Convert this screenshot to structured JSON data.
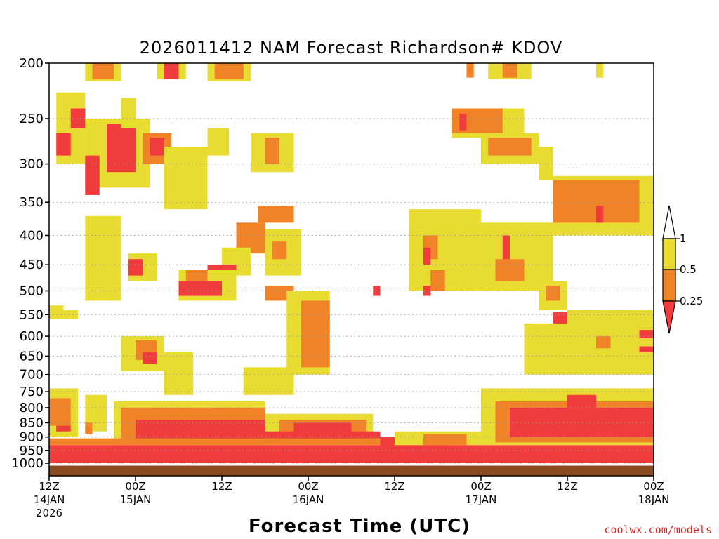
{
  "chart_data": {
    "type": "heatmap",
    "title": "2026011412 NAM Forecast Richardson# KDOV",
    "xlabel": "Forecast Time (UTC)",
    "ylabel": "",
    "y_scale": "log-pressure (hPa, inverted)",
    "ylim": [
      1000,
      200
    ],
    "y_ticks": [
      200,
      250,
      300,
      350,
      400,
      450,
      500,
      550,
      600,
      650,
      700,
      750,
      800,
      850,
      900,
      950,
      1000
    ],
    "x_ticks": [
      {
        "hour": 0,
        "lines": [
          "12Z",
          "14JAN",
          "2026"
        ]
      },
      {
        "hour": 12,
        "lines": [
          "00Z",
          "15JAN"
        ]
      },
      {
        "hour": 24,
        "lines": [
          "12Z"
        ]
      },
      {
        "hour": 36,
        "lines": [
          "00Z",
          "16JAN"
        ]
      },
      {
        "hour": 48,
        "lines": [
          "12Z"
        ]
      },
      {
        "hour": 60,
        "lines": [
          "00Z",
          "17JAN"
        ]
      },
      {
        "hour": 72,
        "lines": [
          "12Z"
        ]
      },
      {
        "hour": 84,
        "lines": [
          "00Z",
          "18JAN"
        ]
      }
    ],
    "x_units": "forecast hour from 2026-01-14 12Z",
    "grid": "dotted horizontal at y ticks",
    "colorbar": {
      "labels": [
        "1",
        "0.5",
        "0.25"
      ],
      "bins": [
        {
          "range": "> 1",
          "color": "#ffffff"
        },
        {
          "range": "0.5 - 1",
          "color": "#e8dc32"
        },
        {
          "range": "0.25 - 0.5",
          "color": "#f08228"
        },
        {
          "range": "< 0.25",
          "color": "#f03c3c"
        }
      ],
      "placement": "right"
    },
    "colors": {
      "yellow": "#e8dc32",
      "orange": "#f08228",
      "red": "#f03c3c",
      "ground": "#8b4a22"
    },
    "surface_pressure_hpa": 1010,
    "cells": [
      {
        "t0": 5,
        "t1": 10,
        "p0": 200,
        "p1": 215,
        "c": "yellow"
      },
      {
        "t0": 6,
        "t1": 9,
        "p0": 200,
        "p1": 213,
        "c": "orange"
      },
      {
        "t0": 15,
        "t1": 19,
        "p0": 200,
        "p1": 213,
        "c": "yellow"
      },
      {
        "t0": 16,
        "t1": 18,
        "p0": 200,
        "p1": 213,
        "c": "red"
      },
      {
        "t0": 22,
        "t1": 28,
        "p0": 200,
        "p1": 215,
        "c": "yellow"
      },
      {
        "t0": 23,
        "t1": 27,
        "p0": 200,
        "p1": 213,
        "c": "orange"
      },
      {
        "t0": 61,
        "t1": 67,
        "p0": 200,
        "p1": 213,
        "c": "yellow"
      },
      {
        "t0": 63,
        "t1": 65,
        "p0": 200,
        "p1": 212,
        "c": "orange"
      },
      {
        "t0": 58,
        "t1": 59,
        "p0": 200,
        "p1": 212,
        "c": "orange"
      },
      {
        "t0": 76,
        "t1": 77,
        "p0": 200,
        "p1": 212,
        "c": "yellow"
      },
      {
        "t0": 1,
        "t1": 5,
        "p0": 225,
        "p1": 300,
        "c": "yellow"
      },
      {
        "t0": 1,
        "t1": 3,
        "p0": 265,
        "p1": 290,
        "c": "red"
      },
      {
        "t0": 3,
        "t1": 5,
        "p0": 240,
        "p1": 260,
        "c": "red"
      },
      {
        "t0": 5,
        "t1": 14,
        "p0": 250,
        "p1": 330,
        "c": "yellow"
      },
      {
        "t0": 8,
        "t1": 12,
        "p0": 255,
        "p1": 310,
        "c": "red"
      },
      {
        "t0": 5,
        "t1": 7,
        "p0": 290,
        "p1": 340,
        "c": "red"
      },
      {
        "t0": 10,
        "t1": 12,
        "p0": 230,
        "p1": 260,
        "c": "yellow"
      },
      {
        "t0": 13,
        "t1": 17,
        "p0": 265,
        "p1": 300,
        "c": "orange"
      },
      {
        "t0": 14,
        "t1": 16,
        "p0": 270,
        "p1": 290,
        "c": "red"
      },
      {
        "t0": 16,
        "t1": 22,
        "p0": 280,
        "p1": 360,
        "c": "yellow"
      },
      {
        "t0": 22,
        "t1": 25,
        "p0": 260,
        "p1": 290,
        "c": "yellow"
      },
      {
        "t0": 28,
        "t1": 34,
        "p0": 265,
        "p1": 310,
        "c": "yellow"
      },
      {
        "t0": 30,
        "t1": 32,
        "p0": 270,
        "p1": 300,
        "c": "orange"
      },
      {
        "t0": 29,
        "t1": 34,
        "p0": 355,
        "p1": 380,
        "c": "orange"
      },
      {
        "t0": 26,
        "t1": 30,
        "p0": 380,
        "p1": 430,
        "c": "orange"
      },
      {
        "t0": 24,
        "t1": 28,
        "p0": 420,
        "p1": 470,
        "c": "yellow"
      },
      {
        "t0": 22,
        "t1": 26,
        "p0": 450,
        "p1": 510,
        "c": "red"
      },
      {
        "t0": 18,
        "t1": 26,
        "p0": 460,
        "p1": 520,
        "c": "yellow"
      },
      {
        "t0": 18,
        "t1": 24,
        "p0": 480,
        "p1": 510,
        "c": "red"
      },
      {
        "t0": 19,
        "t1": 22,
        "p0": 460,
        "p1": 480,
        "c": "orange"
      },
      {
        "t0": 30,
        "t1": 35,
        "p0": 390,
        "p1": 470,
        "c": "yellow"
      },
      {
        "t0": 31,
        "t1": 33,
        "p0": 410,
        "p1": 440,
        "c": "orange"
      },
      {
        "t0": 30,
        "t1": 34,
        "p0": 490,
        "p1": 520,
        "c": "orange"
      },
      {
        "t0": 33,
        "t1": 39,
        "p0": 500,
        "p1": 700,
        "c": "yellow"
      },
      {
        "t0": 35,
        "t1": 39,
        "p0": 520,
        "p1": 680,
        "c": "orange"
      },
      {
        "t0": 29,
        "t1": 34,
        "p0": 690,
        "p1": 740,
        "c": "orange"
      },
      {
        "t0": 27,
        "t1": 34,
        "p0": 680,
        "p1": 760,
        "c": "yellow"
      },
      {
        "t0": 5,
        "t1": 10,
        "p0": 370,
        "p1": 520,
        "c": "yellow"
      },
      {
        "t0": 11,
        "t1": 15,
        "p0": 430,
        "p1": 480,
        "c": "yellow"
      },
      {
        "t0": 11,
        "t1": 13,
        "p0": 440,
        "p1": 470,
        "c": "red"
      },
      {
        "t0": 10,
        "t1": 16,
        "p0": 600,
        "p1": 690,
        "c": "yellow"
      },
      {
        "t0": 12,
        "t1": 15,
        "p0": 610,
        "p1": 660,
        "c": "orange"
      },
      {
        "t0": 13,
        "t1": 15,
        "p0": 640,
        "p1": 670,
        "c": "red"
      },
      {
        "t0": 16,
        "t1": 20,
        "p0": 640,
        "p1": 760,
        "c": "yellow"
      },
      {
        "t0": 0,
        "t1": 2,
        "p0": 530,
        "p1": 560,
        "c": "yellow"
      },
      {
        "t0": 2,
        "t1": 4,
        "p0": 540,
        "p1": 560,
        "c": "yellow"
      },
      {
        "t0": 0,
        "t1": 4,
        "p0": 740,
        "p1": 900,
        "c": "yellow"
      },
      {
        "t0": 0,
        "t1": 3,
        "p0": 770,
        "p1": 860,
        "c": "orange"
      },
      {
        "t0": 1,
        "t1": 3,
        "p0": 860,
        "p1": 880,
        "c": "red"
      },
      {
        "t0": 5,
        "t1": 8,
        "p0": 760,
        "p1": 880,
        "c": "yellow"
      },
      {
        "t0": 5,
        "t1": 6,
        "p0": 850,
        "p1": 890,
        "c": "orange"
      },
      {
        "t0": 9,
        "t1": 30,
        "p0": 780,
        "p1": 930,
        "c": "yellow"
      },
      {
        "t0": 10,
        "t1": 30,
        "p0": 800,
        "p1": 920,
        "c": "orange"
      },
      {
        "t0": 12,
        "t1": 30,
        "p0": 840,
        "p1": 910,
        "c": "red"
      },
      {
        "t0": 30,
        "t1": 45,
        "p0": 820,
        "p1": 920,
        "c": "yellow"
      },
      {
        "t0": 32,
        "t1": 44,
        "p0": 840,
        "p1": 920,
        "c": "orange"
      },
      {
        "t0": 34,
        "t1": 42,
        "p0": 850,
        "p1": 920,
        "c": "red"
      },
      {
        "t0": 0,
        "t1": 86,
        "p0": 930,
        "p1": 1000,
        "c": "red"
      },
      {
        "t0": 0,
        "t1": 86,
        "p0": 905,
        "p1": 930,
        "c": "orange"
      },
      {
        "t0": 20,
        "t1": 46,
        "p0": 880,
        "p1": 905,
        "c": "red"
      },
      {
        "t0": 46,
        "t1": 55,
        "p0": 900,
        "p1": 940,
        "c": "red"
      },
      {
        "t0": 56,
        "t1": 66,
        "p0": 240,
        "p1": 270,
        "c": "yellow"
      },
      {
        "t0": 56,
        "t1": 63,
        "p0": 240,
        "p1": 265,
        "c": "orange"
      },
      {
        "t0": 57,
        "t1": 58,
        "p0": 245,
        "p1": 262,
        "c": "red"
      },
      {
        "t0": 60,
        "t1": 68,
        "p0": 265,
        "p1": 300,
        "c": "yellow"
      },
      {
        "t0": 61,
        "t1": 67,
        "p0": 270,
        "p1": 290,
        "c": "orange"
      },
      {
        "t0": 68,
        "t1": 70,
        "p0": 280,
        "p1": 320,
        "c": "yellow"
      },
      {
        "t0": 70,
        "t1": 84,
        "p0": 315,
        "p1": 400,
        "c": "yellow"
      },
      {
        "t0": 70,
        "t1": 82,
        "p0": 320,
        "p1": 380,
        "c": "orange"
      },
      {
        "t0": 76,
        "t1": 77,
        "p0": 355,
        "p1": 380,
        "c": "red"
      },
      {
        "t0": 50,
        "t1": 60,
        "p0": 360,
        "p1": 500,
        "c": "yellow"
      },
      {
        "t0": 52,
        "t1": 54,
        "p0": 400,
        "p1": 440,
        "c": "orange"
      },
      {
        "t0": 52,
        "t1": 53,
        "p0": 420,
        "p1": 450,
        "c": "red"
      },
      {
        "t0": 53,
        "t1": 55,
        "p0": 460,
        "p1": 500,
        "c": "orange"
      },
      {
        "t0": 59,
        "t1": 70,
        "p0": 380,
        "p1": 500,
        "c": "yellow"
      },
      {
        "t0": 62,
        "t1": 66,
        "p0": 440,
        "p1": 480,
        "c": "orange"
      },
      {
        "t0": 63,
        "t1": 64,
        "p0": 400,
        "p1": 440,
        "c": "red"
      },
      {
        "t0": 68,
        "t1": 72,
        "p0": 480,
        "p1": 540,
        "c": "yellow"
      },
      {
        "t0": 69,
        "t1": 71,
        "p0": 490,
        "p1": 520,
        "c": "orange"
      },
      {
        "t0": 70,
        "t1": 73,
        "p0": 545,
        "p1": 580,
        "c": "red"
      },
      {
        "t0": 66,
        "t1": 72,
        "p0": 570,
        "p1": 700,
        "c": "yellow"
      },
      {
        "t0": 72,
        "t1": 84,
        "p0": 540,
        "p1": 700,
        "c": "yellow"
      },
      {
        "t0": 76,
        "t1": 78,
        "p0": 600,
        "p1": 630,
        "c": "orange"
      },
      {
        "t0": 82,
        "t1": 86,
        "p0": 580,
        "p1": 640,
        "c": "yellow"
      },
      {
        "t0": 82,
        "t1": 85,
        "p0": 585,
        "p1": 605,
        "c": "red"
      },
      {
        "t0": 82,
        "t1": 85,
        "p0": 625,
        "p1": 640,
        "c": "red"
      },
      {
        "t0": 45,
        "t1": 46,
        "p0": 490,
        "p1": 510,
        "c": "red"
      },
      {
        "t0": 52,
        "t1": 53,
        "p0": 490,
        "p1": 510,
        "c": "red"
      },
      {
        "t0": 60,
        "t1": 86,
        "p0": 740,
        "p1": 930,
        "c": "yellow"
      },
      {
        "t0": 62,
        "t1": 84,
        "p0": 780,
        "p1": 920,
        "c": "orange"
      },
      {
        "t0": 64,
        "t1": 84,
        "p0": 800,
        "p1": 900,
        "c": "red"
      },
      {
        "t0": 72,
        "t1": 76,
        "p0": 760,
        "p1": 800,
        "c": "red"
      },
      {
        "t0": 84,
        "t1": 86,
        "p0": 720,
        "p1": 760,
        "c": "red"
      },
      {
        "t0": 48,
        "t1": 60,
        "p0": 880,
        "p1": 930,
        "c": "yellow"
      },
      {
        "t0": 52,
        "t1": 58,
        "p0": 890,
        "p1": 930,
        "c": "orange"
      }
    ]
  },
  "credit": "coolwx.com/models"
}
